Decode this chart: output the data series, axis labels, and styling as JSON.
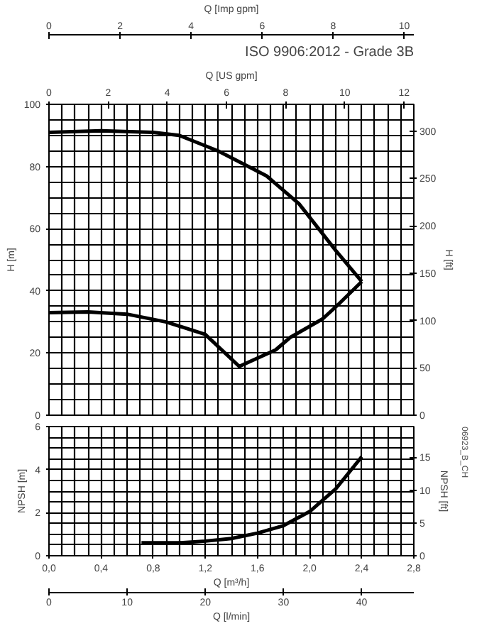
{
  "chart_data": [
    {
      "type": "line",
      "title": "ISO 9906:2012 - Grade 3B",
      "ylabel": "H [m]",
      "y2label": "H [ft]",
      "x2label": "Q [Imp gpm]",
      "xlabel": "Q [US gpm]",
      "xlim": [
        0,
        12.33
      ],
      "xticks": [
        0,
        2,
        4,
        6,
        8,
        10,
        12
      ],
      "ylim": [
        0,
        100
      ],
      "yticks": [
        0,
        20,
        40,
        60,
        80,
        100
      ],
      "y2lim": [
        0,
        328.1
      ],
      "y2ticks": [
        0,
        50,
        100,
        150,
        200,
        250,
        300
      ],
      "x2lim": [
        0,
        10.27
      ],
      "x2ticks": [
        0,
        2,
        4,
        6,
        8,
        10
      ],
      "grid": true,
      "series": [
        {
          "color": "#000000",
          "x": [
            0,
            1.76,
            3.52,
            4.4,
            5.72,
            7.35,
            8.45,
            9.69,
            10.57
          ],
          "values": [
            91,
            91.5,
            91,
            90,
            85,
            77,
            68,
            53,
            43
          ]
        },
        {
          "color": "#000000",
          "x": [
            0,
            1.32,
            2.64,
            3.96,
            5.28,
            6.43,
            7.66,
            8.15,
            9.25,
            9.82,
            10.57
          ],
          "values": [
            33,
            33.2,
            32.5,
            30,
            26,
            15.7,
            21,
            25,
            31,
            36,
            43
          ]
        }
      ]
    },
    {
      "type": "line",
      "xlabel": "Q [m³/h]",
      "ylabel": "NPSH [m]",
      "y2label": "NPSH [ft]",
      "x2label": "Q [l/min]",
      "xlim": [
        0,
        2.8
      ],
      "xticks": [
        {
          "value": 0,
          "label": "0,0"
        },
        {
          "value": 0.4,
          "label": "0,4"
        },
        {
          "value": 0.8,
          "label": "0,8"
        },
        {
          "value": 1.2,
          "label": "1,2"
        },
        {
          "value": 1.6,
          "label": "1,6"
        },
        {
          "value": 2.0,
          "label": "2,0"
        },
        {
          "value": 2.4,
          "label": "2,4"
        },
        {
          "value": 2.8,
          "label": "2,8"
        }
      ],
      "x2lim": [
        0,
        46.67
      ],
      "x2ticks": [
        0,
        10,
        20,
        30,
        40
      ],
      "ylim": [
        0,
        6
      ],
      "yticks": [
        0,
        2,
        4,
        6
      ],
      "y2lim": [
        0,
        19.69
      ],
      "y2ticks": [
        0,
        5,
        10,
        15
      ],
      "grid": true,
      "annotations": [
        "06923_B_CH"
      ],
      "series": [
        {
          "color": "#000000",
          "x": [
            0.71,
            1.0,
            1.2,
            1.4,
            1.6,
            1.8,
            2.0,
            2.2,
            2.4
          ],
          "values": [
            0.6,
            0.6,
            0.68,
            0.8,
            1.05,
            1.4,
            2.05,
            3.1,
            4.6
          ]
        }
      ]
    }
  ]
}
